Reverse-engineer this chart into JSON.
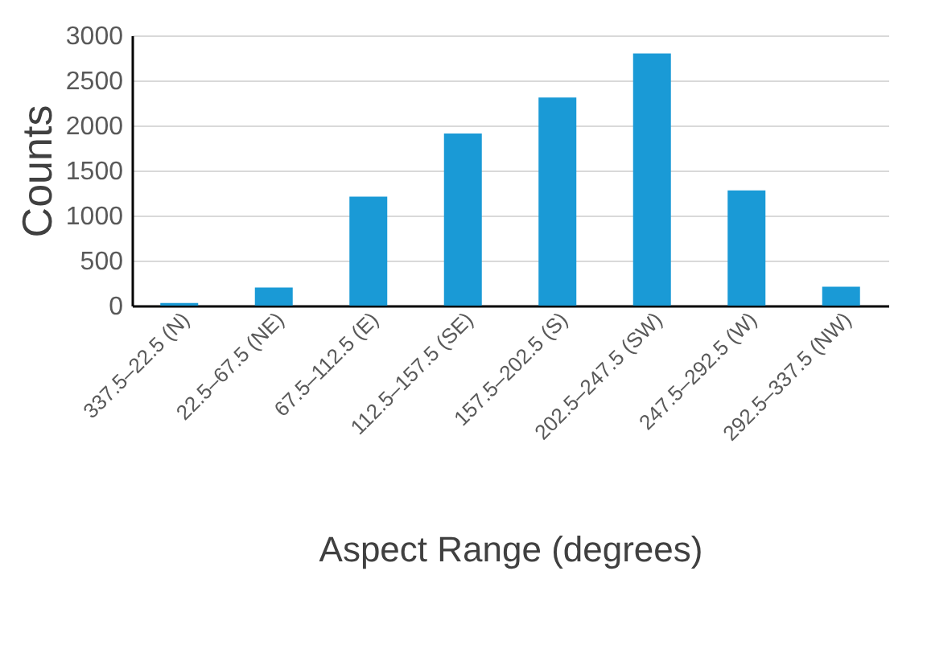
{
  "chart_data": {
    "type": "bar",
    "xlabel": "Aspect Range (degrees)",
    "ylabel": "Counts",
    "categories": [
      "337.5–22.5 (N)",
      "22.5–67.5 (NE)",
      "67.5–112.5 (E)",
      "112.5–157.5 (SE)",
      "157.5–202.5 (S)",
      "202.5–247.5 (SW)",
      "247.5–292.5 (W)",
      "292.5–337.5 (NW)"
    ],
    "values": [
      30,
      200,
      1210,
      1910,
      2310,
      2800,
      1280,
      210
    ],
    "color": "#1a9ad6",
    "ylim": [
      0,
      3000
    ],
    "yticks": [
      0,
      500,
      1000,
      1500,
      2000,
      2500,
      3000
    ],
    "grid": "y"
  }
}
